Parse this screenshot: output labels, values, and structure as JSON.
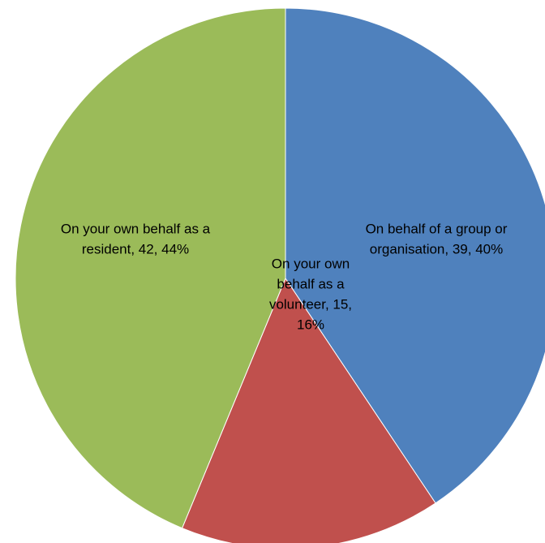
{
  "chart_data": {
    "type": "pie",
    "title": "",
    "slices": [
      {
        "label": "On behalf of a group or organisation",
        "value": 39,
        "percent": "40%",
        "color": "#4f81bd",
        "label_lines": [
          "On behalf of a group or",
          "organisation, 39, 40%"
        ]
      },
      {
        "label": "On your own behalf as a volunteer",
        "value": 15,
        "percent": "16%",
        "color": "#c0504d",
        "label_lines": [
          "On your own",
          "behalf as a",
          "volunteer, 15,",
          "16%"
        ]
      },
      {
        "label": "On your own behalf as a resident",
        "value": 42,
        "percent": "44%",
        "color": "#9bbb59",
        "label_lines": [
          "On your own behalf as a",
          "resident, 42, 44%"
        ]
      }
    ]
  }
}
